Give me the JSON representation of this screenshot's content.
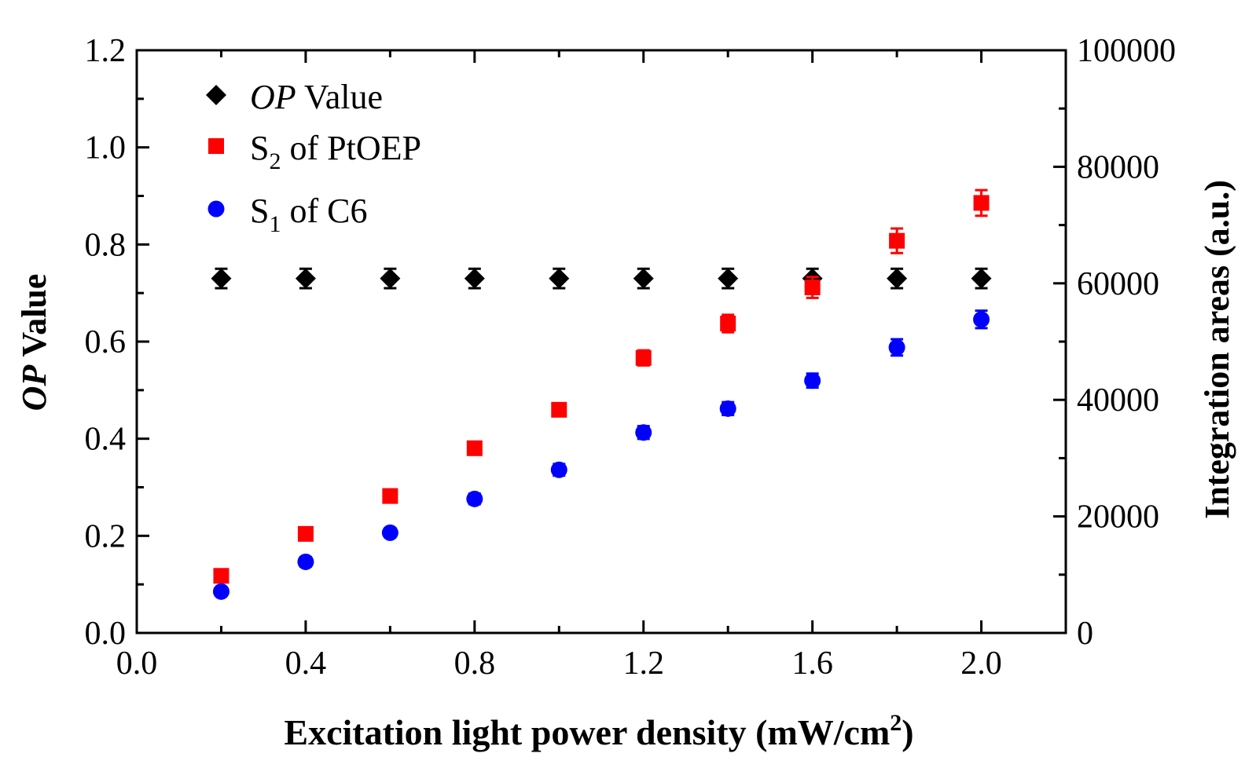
{
  "chart_data": {
    "type": "scatter",
    "xlabel": {
      "main": "Excitation light power density (mW/cm",
      "sup": "2",
      "end": ")"
    },
    "ylabel_left": {
      "italic": "OP",
      "rest": " Value"
    },
    "ylabel_right": "Integration areas (a.u.)",
    "xlim": [
      0.0,
      2.2
    ],
    "ylim_left": [
      0.0,
      1.2
    ],
    "ylim_right": [
      0,
      100000
    ],
    "x_ticks": [
      "0.0",
      "0.4",
      "0.8",
      "1.2",
      "1.6",
      "2.0"
    ],
    "x_tick_values": [
      0.0,
      0.4,
      0.8,
      1.2,
      1.6,
      2.0
    ],
    "y_left_ticks": [
      "0.0",
      "0.2",
      "0.4",
      "0.6",
      "0.8",
      "1.0",
      "1.2"
    ],
    "y_left_tick_values": [
      0.0,
      0.2,
      0.4,
      0.6,
      0.8,
      1.0,
      1.2
    ],
    "y_right_ticks": [
      "0",
      "20000",
      "40000",
      "60000",
      "80000",
      "100000"
    ],
    "y_right_tick_values": [
      0,
      20000,
      40000,
      60000,
      80000,
      100000
    ],
    "legend": [
      {
        "italic": "OP",
        "rest": " Value",
        "sub": "",
        "tail": ""
      },
      {
        "italic": "",
        "rest": " S",
        "sub": "2",
        "tail": " of PtOEP"
      },
      {
        "italic": "",
        "rest": " S",
        "sub": "1",
        "tail": " of C6"
      }
    ],
    "series": [
      {
        "name": "OP Value",
        "axis": "left",
        "marker": "diamond",
        "color": "#000000",
        "x": [
          0.2,
          0.4,
          0.6,
          0.8,
          1.0,
          1.2,
          1.4,
          1.6,
          1.8,
          2.0
        ],
        "y": [
          0.73,
          0.73,
          0.73,
          0.73,
          0.73,
          0.73,
          0.73,
          0.73,
          0.73,
          0.73
        ],
        "err": [
          0.02,
          0.02,
          0.02,
          0.02,
          0.02,
          0.02,
          0.02,
          0.02,
          0.02,
          0.02
        ]
      },
      {
        "name": "S2 of PtOEP",
        "axis": "right",
        "marker": "square",
        "color": "#ff0000",
        "x": [
          0.2,
          0.4,
          0.6,
          0.8,
          1.0,
          1.2,
          1.4,
          1.6,
          1.8,
          2.0
        ],
        "y": [
          9800,
          17000,
          23500,
          31700,
          38300,
          47200,
          53100,
          59300,
          67300,
          73800
        ],
        "err": [
          800,
          800,
          900,
          1000,
          1000,
          1300,
          1500,
          1800,
          2100,
          2200
        ]
      },
      {
        "name": "S1 of C6",
        "axis": "right",
        "marker": "circle",
        "color": "#0000ff",
        "x": [
          0.2,
          0.4,
          0.6,
          0.8,
          1.0,
          1.2,
          1.4,
          1.6,
          1.8,
          2.0
        ],
        "y": [
          7100,
          12200,
          17200,
          23000,
          28000,
          34400,
          38500,
          43300,
          49000,
          53800
        ],
        "err": [
          600,
          800,
          800,
          900,
          1000,
          1100,
          1100,
          1200,
          1400,
          1500
        ]
      }
    ]
  }
}
